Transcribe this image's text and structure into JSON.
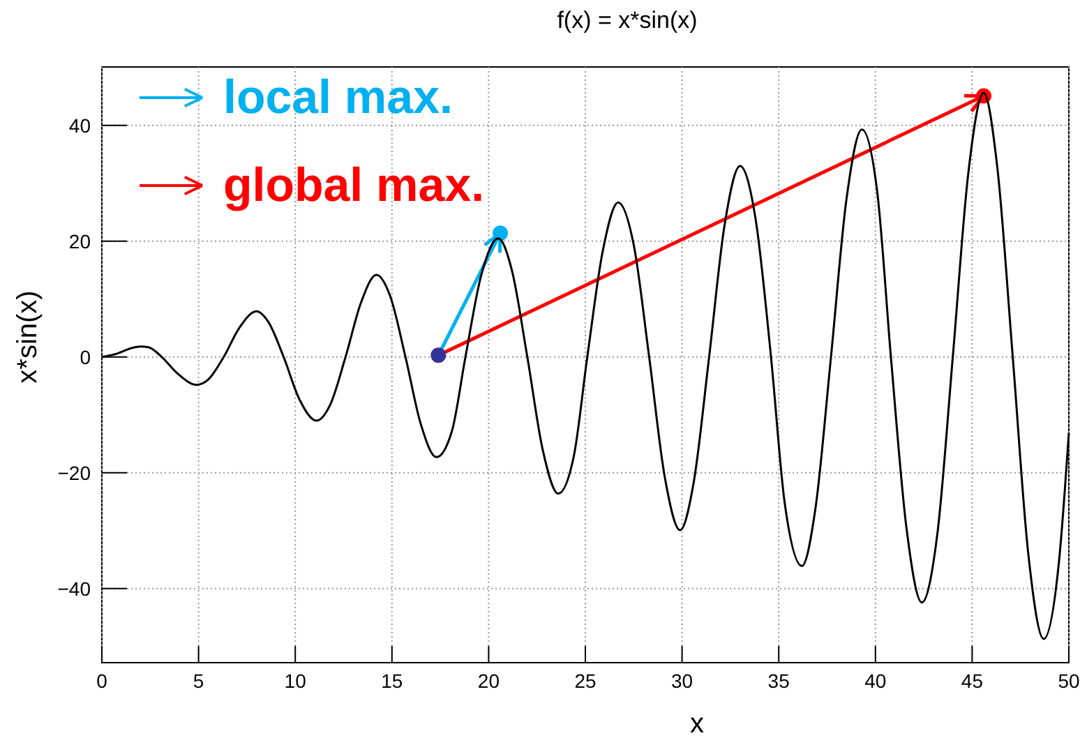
{
  "chart_data": {
    "type": "line",
    "title": "f(x) = x*sin(x)",
    "xlabel": "x",
    "ylabel": "x*sin(x)",
    "xlim": [
      0,
      50
    ],
    "xticks": [
      0,
      5,
      10,
      15,
      20,
      25,
      30,
      35,
      40,
      45,
      50
    ],
    "ylim": [
      -52.8,
      50.1
    ],
    "yticks": [
      -40,
      -20,
      0,
      20,
      40
    ],
    "grid": true,
    "legend": "top left",
    "series": [
      {
        "color": "#000000",
        "marker": "none",
        "x": [
          0,
          0.8,
          1.6,
          2.0,
          2.4,
          3.1,
          3.9,
          4.9,
          5.5,
          6.3,
          7.1,
          8.0,
          8.6,
          9.4,
          10.2,
          11.1,
          11.8,
          12.6,
          13.4,
          14.2,
          14.9,
          15.7,
          16.5,
          17.3,
          18.1,
          18.8,
          19.6,
          20.5,
          21.2,
          22.0,
          22.8,
          23.6,
          24.4,
          25.1,
          25.9,
          26.7,
          27.5,
          28.3,
          29.1,
          29.9,
          30.6,
          31.4,
          32.2,
          33.0,
          33.8,
          34.6,
          35.3,
          36.2,
          36.9,
          37.7,
          38.5,
          39.3,
          40.1,
          40.8,
          41.6,
          42.4,
          43.2,
          44.0,
          44.8,
          45.6,
          46.3,
          47.1,
          47.9,
          48.7,
          49.5,
          50
        ],
        "values": [
          0,
          0.6,
          1.6,
          1.8,
          1.7,
          0,
          -2.8,
          -4.8,
          -3.9,
          0,
          5.0,
          7.9,
          6.1,
          0,
          -7.2,
          -11.0,
          -8.3,
          0,
          9.4,
          14.2,
          10.6,
          0,
          -11.7,
          -17.3,
          -12.8,
          0,
          13.9,
          20.5,
          15.0,
          0,
          -16.1,
          -23.6,
          -17.2,
          0,
          18.3,
          26.7,
          19.4,
          0,
          -20.6,
          -29.9,
          -21.7,
          0,
          22.8,
          33.0,
          23.9,
          0,
          -25.0,
          -36.1,
          -26.1,
          0,
          27.2,
          39.3,
          28.3,
          0,
          -29.4,
          -42.4,
          -30.6,
          0,
          31.7,
          45.6,
          32.8,
          0,
          -33.9,
          -48.7,
          -35.0,
          -13.1
        ]
      },
      {
        "type": "scatter",
        "color": "#333399",
        "marker": "circle",
        "x": [
          17.4
        ],
        "values": [
          0.3
        ]
      },
      {
        "type": "scatter",
        "name": "local max.",
        "color": "#00b0f0",
        "marker": "circle",
        "x": [
          20.6
        ],
        "values": [
          21.4
        ]
      },
      {
        "type": "scatter",
        "name": "global max.",
        "color": "#ff0000",
        "marker": "circle",
        "x": [
          45.6
        ],
        "values": [
          45.1
        ]
      }
    ]
  }
}
